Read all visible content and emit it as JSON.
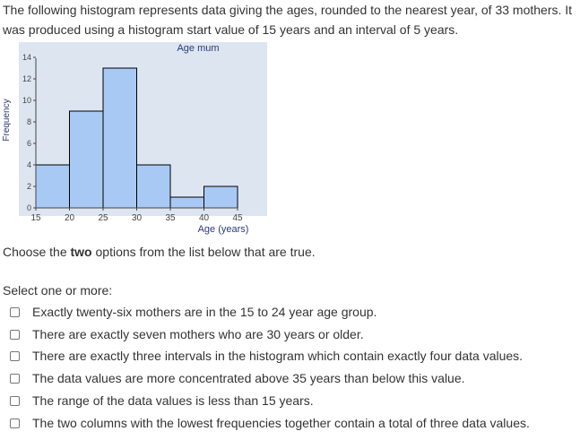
{
  "question": {
    "intro_line1": "The following histogram represents data giving the ages, rounded to the nearest year, of 33 mothers. It",
    "intro_line2": "was produced using a histogram start value of 15 years and an interval of 5 years.",
    "prompt_before": "Choose the ",
    "prompt_bold": "two",
    "prompt_after": " options from the list below that are true.",
    "select_label": "Select one or more:"
  },
  "options": [
    {
      "label": "Exactly twenty-six mothers are in the 15 to 24 year age group.",
      "checked": false
    },
    {
      "label": "There are exactly seven mothers who are 30 years or older.",
      "checked": false
    },
    {
      "label": "There are exactly three intervals in the histogram which contain exactly four data values.",
      "checked": false
    },
    {
      "label": "The data values are more concentrated above 35 years than below this value.",
      "checked": false
    },
    {
      "label": "The range of the data values is less than 15 years.",
      "checked": false
    },
    {
      "label": "The two columns with the lowest frequencies together contain a total of three data values.",
      "checked": false
    }
  ],
  "chart_data": {
    "type": "bar",
    "title": "Age mum",
    "xlabel": "Age (years)",
    "ylabel": "Frequency",
    "bin_edges": [
      15,
      20,
      25,
      30,
      35,
      40,
      45
    ],
    "values": [
      4,
      9,
      13,
      4,
      1,
      2
    ],
    "xlim": [
      15,
      45
    ],
    "ylim": [
      0,
      14
    ],
    "x_ticks": [
      "15",
      "20",
      "25",
      "30",
      "35",
      "40",
      "45"
    ],
    "y_ticks": [
      "0",
      "2",
      "4",
      "6",
      "8",
      "10",
      "12",
      "14"
    ],
    "grid": false,
    "colors": {
      "background": "#dde6f0",
      "bar_fill": "#a9c9f5",
      "bar_stroke": "#000000",
      "axis_text": "#2b3a7a"
    }
  }
}
